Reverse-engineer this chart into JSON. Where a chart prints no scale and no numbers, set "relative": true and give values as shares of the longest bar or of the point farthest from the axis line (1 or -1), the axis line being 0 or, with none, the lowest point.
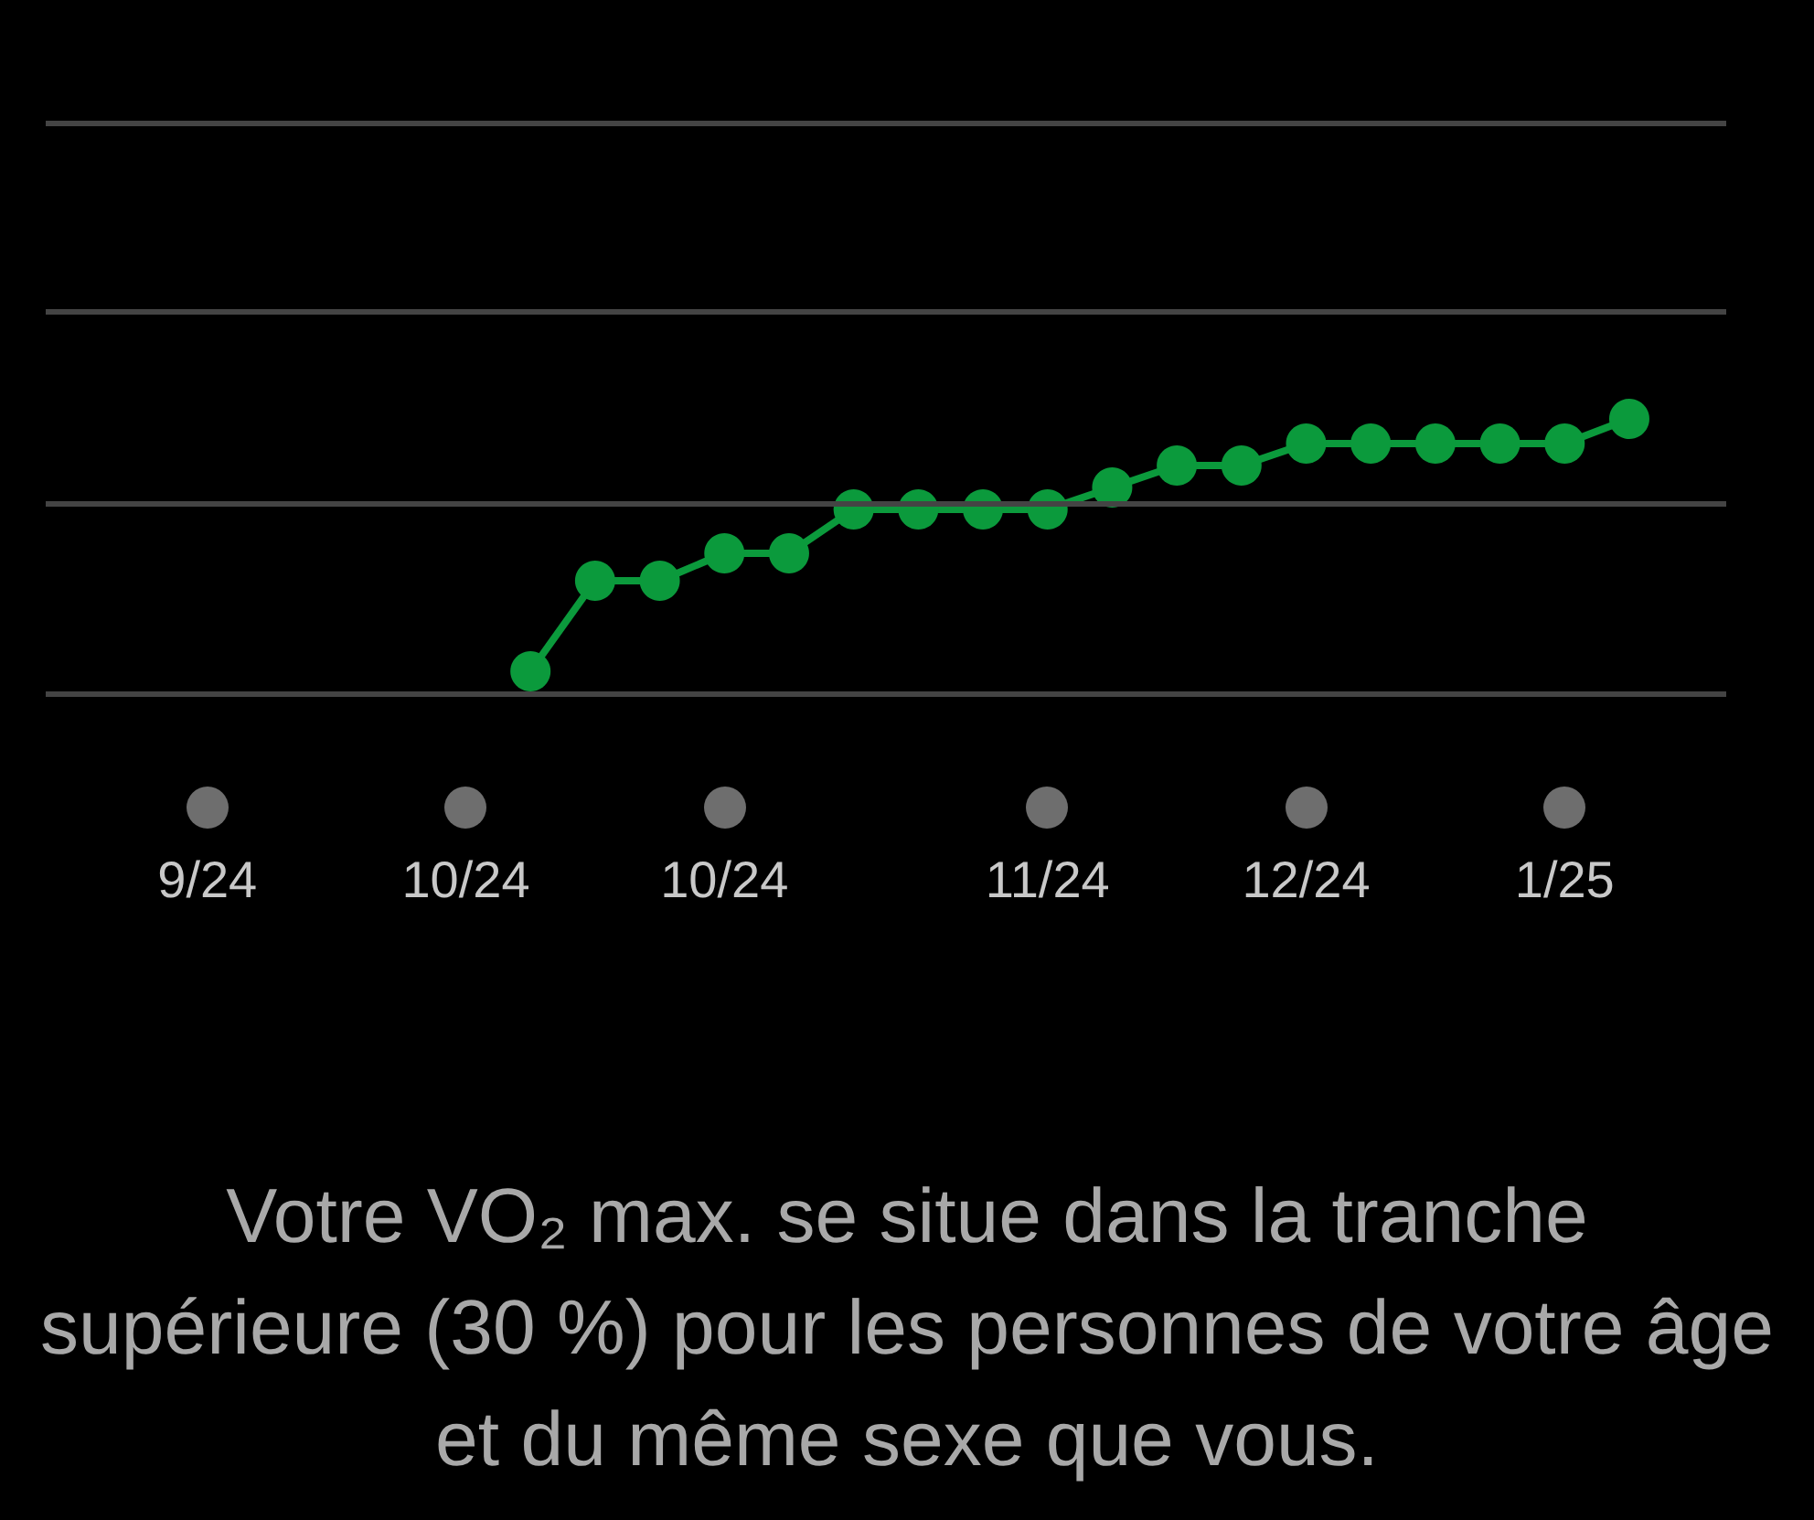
{
  "chart_data": {
    "type": "line",
    "relative": true,
    "marker": "circle",
    "line_style": "solid",
    "ref_lines": [
      {
        "axis": "y",
        "value": 0,
        "color": "#444444"
      },
      {
        "axis": "y",
        "value": 0.69,
        "color": "#444444"
      },
      {
        "axis": "y",
        "value": 1.39,
        "color": "#444444"
      },
      {
        "axis": "y",
        "value": 2.08,
        "color": "#444444"
      }
    ],
    "categories": [
      null,
      null,
      "9/24",
      null,
      null,
      null,
      "10/24",
      null,
      null,
      null,
      "10/24",
      null,
      null,
      null,
      null,
      "11/24",
      null,
      null,
      null,
      "12/24",
      null,
      null,
      null,
      "1/25",
      null,
      null
    ],
    "series": [
      {
        "color": "#0b9a3c",
        "values": [
          null,
          null,
          null,
          null,
          null,
          null,
          null,
          0.08,
          0.41,
          0.41,
          0.51,
          0.51,
          0.67,
          0.67,
          0.67,
          0.67,
          0.75,
          0.83,
          0.83,
          0.91,
          0.91,
          0.91,
          0.91,
          0.91,
          1,
          null
        ]
      }
    ],
    "annotations": [
      "Votre VO₂ max. se situe dans la tranche supérieure (30 %) pour les personnes de votre âge et du même sexe que vous."
    ]
  }
}
